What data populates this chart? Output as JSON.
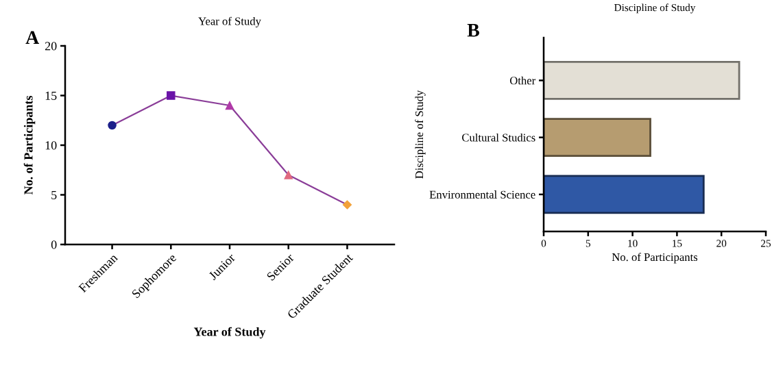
{
  "chart_data": [
    {
      "type": "line",
      "title": "Year of Study",
      "xlabel": "Year of Study",
      "ylabel": "No. of Participants",
      "annotations": [
        "A"
      ],
      "categories": [
        "Freshman",
        "Sophomore",
        "Junior",
        "Senior",
        "Graduate Student"
      ],
      "series": [
        {
          "color": "#8a3d98",
          "colors": [
            "#1c1f8a",
            "#6a13a8",
            "#b03aa8",
            "#e06a80",
            "#f2a13a"
          ],
          "values": [
            12,
            15,
            14,
            7,
            4
          ]
        }
      ],
      "marker": [
        "circle",
        "square",
        "triangle",
        "triangle",
        "diamond"
      ],
      "line_style": "solid",
      "ylim": [
        0,
        20
      ],
      "yticks": [
        0,
        5,
        10,
        15,
        20
      ],
      "grid": false,
      "legend": false
    },
    {
      "type": "bar",
      "orientation": "horizontal",
      "title": "Discipline of Study",
      "xlabel": "No. of Participants",
      "ylabel": "Discipline of Study",
      "annotations": [
        "B"
      ],
      "categories": [
        "Other",
        "Cultural Studics",
        "Environmental Science"
      ],
      "values": [
        22,
        12,
        18
      ],
      "colors": [
        "#e3dfd5",
        "#b69c70",
        "#2f58a5"
      ],
      "xlim": [
        0,
        25
      ],
      "xticks": [
        0,
        5,
        10,
        15,
        20,
        25
      ],
      "grid": false,
      "legend": false
    }
  ]
}
